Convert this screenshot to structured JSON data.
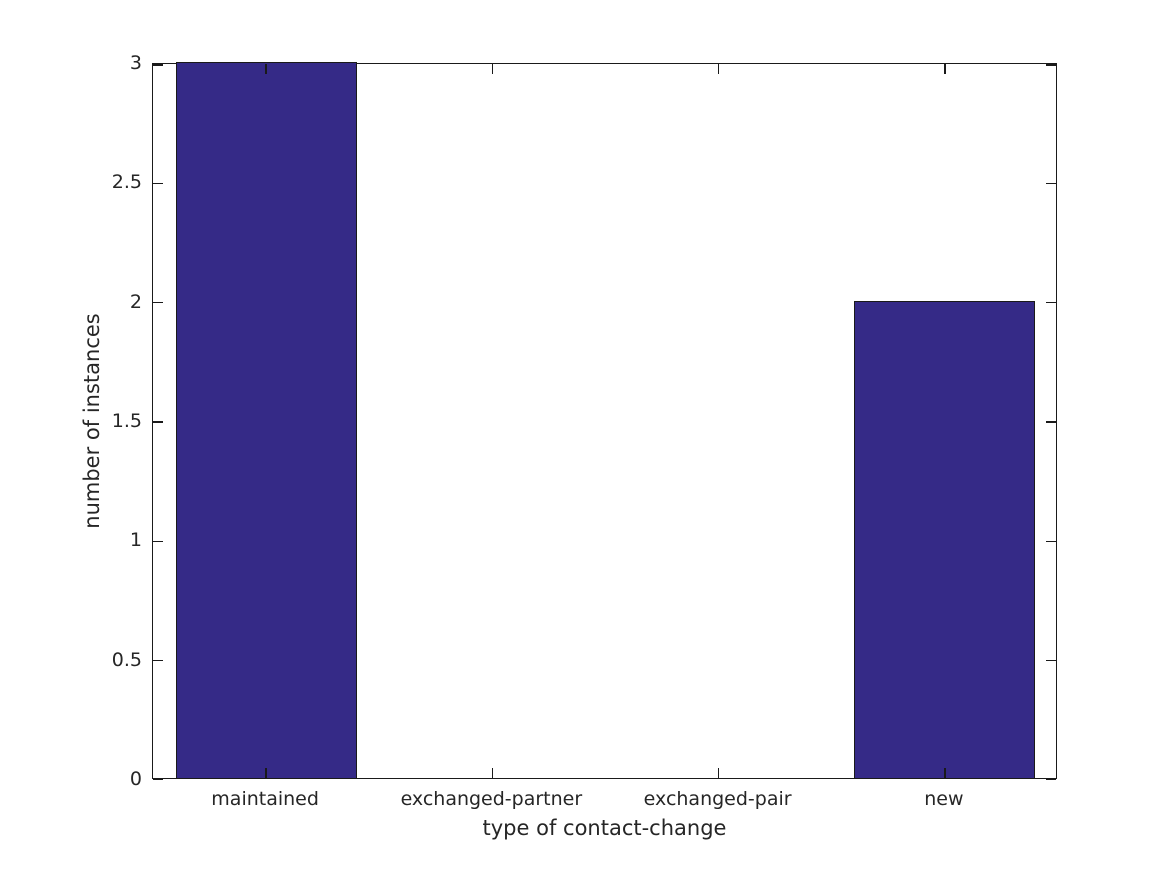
{
  "figure": {
    "background_color": "#ffffff"
  },
  "chart_data": {
    "type": "bar",
    "categories": [
      "maintained",
      "exchanged-partner",
      "exchanged-pair",
      "new"
    ],
    "values": [
      3,
      0,
      0,
      2
    ],
    "title": "",
    "xlabel": "type of contact-change",
    "ylabel": "number of instances",
    "ylim": [
      0,
      3
    ],
    "yticks": [
      0,
      0.5,
      1,
      1.5,
      2,
      2.5,
      3
    ],
    "ytick_labels": [
      "0",
      "0.5",
      "1",
      "1.5",
      "2",
      "2.5",
      "3"
    ],
    "bar_width_fraction": 0.8,
    "bar_color": "#352A87",
    "bar_edge_color": "#1a1a1a",
    "axis_color": "#1a1a1a",
    "text_color": "#262626",
    "grid": false,
    "legend": null,
    "box": true,
    "tick_direction": "in"
  }
}
